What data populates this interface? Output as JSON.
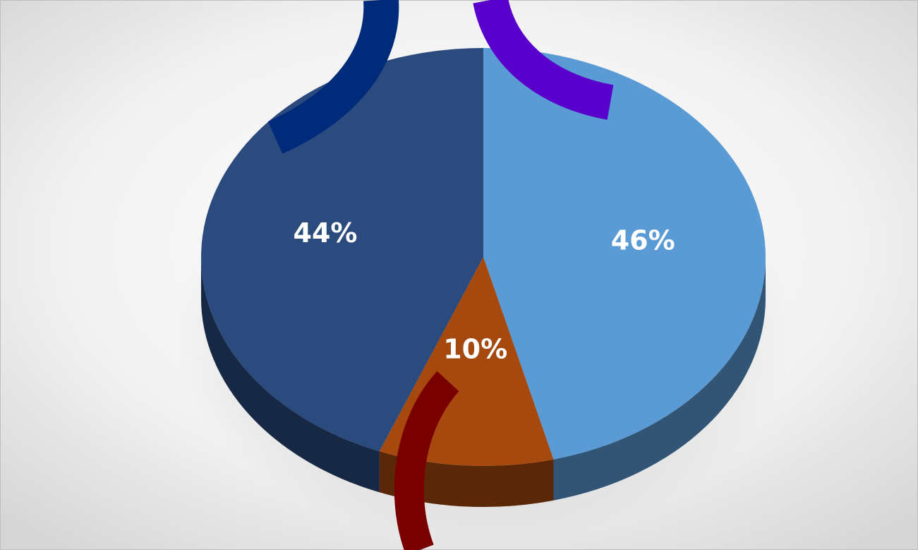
{
  "chart_data": {
    "type": "pie",
    "values": [
      46,
      10,
      44
    ],
    "value_labels": [
      "46%",
      "10%",
      "44%"
    ],
    "colors": [
      "#5b9bd5",
      "#a5490f",
      "#2b4a7e"
    ]
  }
}
